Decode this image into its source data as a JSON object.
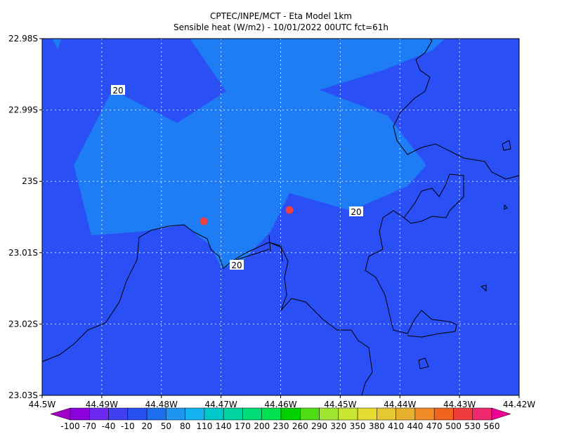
{
  "title": "CPTEC/INPE/MCT -  Eta Model 1km",
  "subtitle": "Sensible heat (W/m2) - 10/01/2022 00UTC fct=61h",
  "yticks": [
    "22.98S",
    "22.99S",
    "23S",
    "23.01S",
    "23.02S",
    "23.03S"
  ],
  "xticks": [
    "44.5W",
    "44.49W",
    "44.48W",
    "44.47W",
    "44.46W",
    "44.45W",
    "44.44W",
    "44.43W",
    "44.42W"
  ],
  "contour_labels": [
    "20",
    "20",
    "20"
  ],
  "colorbar": {
    "levels": [
      -100,
      -70,
      -40,
      -10,
      20,
      50,
      80,
      110,
      140,
      170,
      200,
      230,
      260,
      290,
      320,
      350,
      380,
      410,
      440,
      470,
      500,
      530,
      560
    ],
    "colors": [
      "#a000c8",
      "#8c00dc",
      "#6e28f0",
      "#4040f0",
      "#2850f0",
      "#1e6ef0",
      "#1e96f0",
      "#14b4f0",
      "#00c8c8",
      "#00d2a0",
      "#00dc78",
      "#00e150",
      "#00d200",
      "#50dc14",
      "#a0e632",
      "#c8e632",
      "#e6dc32",
      "#e6c832",
      "#e6af2d",
      "#f08c28",
      "#f0641e",
      "#f03c3c",
      "#f0286e",
      "#f00096"
    ]
  }
}
